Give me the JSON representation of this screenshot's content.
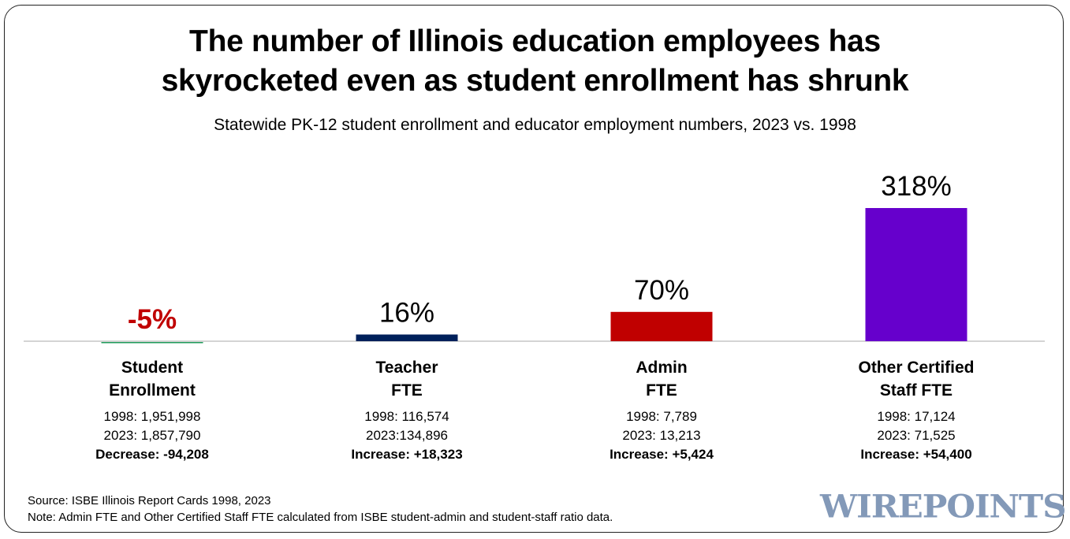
{
  "chart_data": {
    "type": "bar",
    "title": "The number of Illinois education employees has skyrocketed even as student enrollment has shrunk",
    "title_lines": [
      "The number of Illinois education employees has",
      "skyrocketed even as student enrollment has shrunk"
    ],
    "subtitle": "Statewide PK-12 student enrollment and educator employment numbers, 2023 vs. 1998",
    "categories": [
      "Student\nEnrollment",
      "Teacher\nFTE",
      "Admin\nFTE",
      "Other Certified\nStaff FTE"
    ],
    "values": [
      -5,
      16,
      70,
      318
    ],
    "data_labels": [
      "-5%",
      "16%",
      "70%",
      "318%"
    ],
    "unit": "%",
    "bar_colors": [
      "#1f9a5a",
      "#00205b",
      "#c00000",
      "#6600cc"
    ],
    "label_colors": [
      "#c00000",
      "#000000",
      "#000000",
      "#000000"
    ],
    "details": [
      [
        "1998: 1,951,998",
        "2023: 1,857,790",
        "Decrease: -94,208"
      ],
      [
        "1998: 116,574",
        "2023:134,896",
        "Increase: +18,323"
      ],
      [
        "1998: 7,789",
        "2023: 13,213",
        "Increase: +5,424"
      ],
      [
        "1998: 17,124",
        "2023: 71,525",
        "Increase: +54,400"
      ]
    ],
    "grid": false,
    "legend": "none"
  },
  "source": "Source: ISBE Illinois Report Cards 1998, 2023",
  "note": "Note: Admin FTE and Other Certified Staff FTE calculated from ISBE student-admin and student-staff ratio data.",
  "logo": "WIREPOINTS"
}
